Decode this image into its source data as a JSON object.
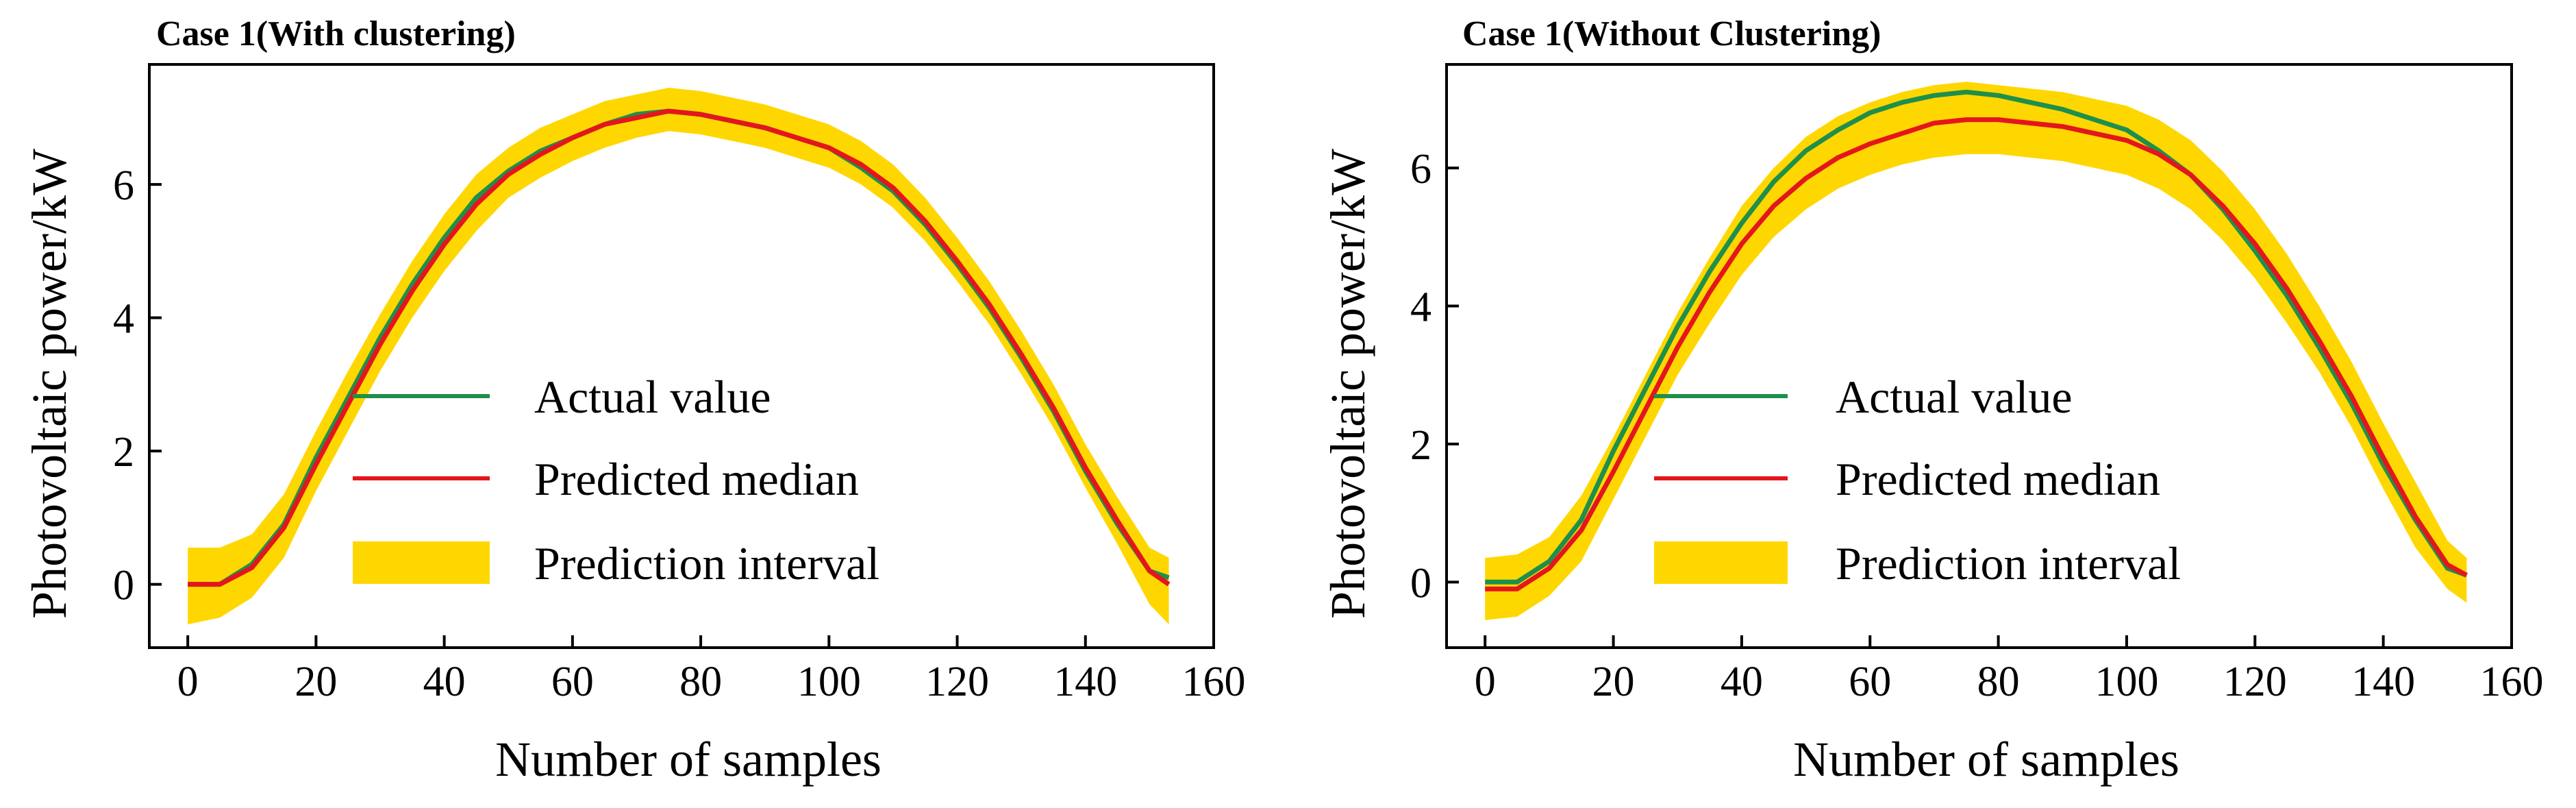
{
  "chart_data": [
    {
      "type": "line",
      "title": "Case 1(With clustering)",
      "xlabel": "Number of samples",
      "ylabel": "Photovoltaic power/kW",
      "xlim": [
        -6,
        160
      ],
      "ylim": [
        -0.95,
        7.8
      ],
      "xticks": [
        0,
        20,
        40,
        60,
        80,
        100,
        120,
        140,
        160
      ],
      "yticks": [
        0,
        2,
        4,
        6
      ],
      "legend_position": "center",
      "series": [
        {
          "name": "Actual value",
          "color": "#1f8f4a",
          "x": [
            0,
            5,
            10,
            15,
            20,
            25,
            30,
            35,
            40,
            45,
            50,
            55,
            60,
            65,
            70,
            75,
            80,
            85,
            90,
            95,
            100,
            105,
            110,
            115,
            120,
            125,
            130,
            135,
            140,
            145,
            150,
            153
          ],
          "y": [
            0.0,
            0.0,
            0.3,
            0.9,
            1.9,
            2.8,
            3.7,
            4.5,
            5.2,
            5.8,
            6.2,
            6.5,
            6.7,
            6.9,
            7.05,
            7.1,
            7.05,
            6.95,
            6.85,
            6.7,
            6.55,
            6.25,
            5.9,
            5.4,
            4.8,
            4.15,
            3.4,
            2.6,
            1.7,
            0.9,
            0.2,
            0.1
          ]
        },
        {
          "name": "Predicted median",
          "color": "#e4161d",
          "x": [
            0,
            5,
            10,
            15,
            20,
            25,
            30,
            35,
            40,
            45,
            50,
            55,
            60,
            65,
            70,
            75,
            80,
            85,
            90,
            95,
            100,
            105,
            110,
            115,
            120,
            125,
            130,
            135,
            140,
            145,
            150,
            153
          ],
          "y": [
            0.0,
            0.0,
            0.25,
            0.85,
            1.8,
            2.7,
            3.6,
            4.4,
            5.1,
            5.7,
            6.15,
            6.45,
            6.7,
            6.9,
            7.0,
            7.1,
            7.05,
            6.95,
            6.85,
            6.7,
            6.55,
            6.3,
            5.95,
            5.45,
            4.85,
            4.2,
            3.45,
            2.65,
            1.75,
            0.95,
            0.2,
            0.0
          ]
        },
        {
          "name": "Prediction interval",
          "color": "#ffd700",
          "x": [
            0,
            5,
            10,
            15,
            20,
            25,
            30,
            35,
            40,
            45,
            50,
            55,
            60,
            65,
            70,
            75,
            80,
            85,
            90,
            95,
            100,
            105,
            110,
            115,
            120,
            125,
            130,
            135,
            140,
            145,
            150,
            153
          ],
          "lower": [
            -0.6,
            -0.5,
            -0.2,
            0.4,
            1.4,
            2.3,
            3.2,
            4.0,
            4.7,
            5.3,
            5.8,
            6.1,
            6.35,
            6.55,
            6.7,
            6.8,
            6.75,
            6.65,
            6.55,
            6.4,
            6.25,
            6.0,
            5.65,
            5.15,
            4.55,
            3.9,
            3.15,
            2.35,
            1.45,
            0.6,
            -0.3,
            -0.6
          ],
          "upper": [
            0.55,
            0.55,
            0.75,
            1.35,
            2.3,
            3.2,
            4.05,
            4.85,
            5.55,
            6.15,
            6.55,
            6.85,
            7.05,
            7.25,
            7.35,
            7.45,
            7.4,
            7.3,
            7.2,
            7.05,
            6.9,
            6.65,
            6.3,
            5.8,
            5.2,
            4.55,
            3.8,
            3.0,
            2.1,
            1.3,
            0.55,
            0.4
          ]
        }
      ]
    },
    {
      "type": "line",
      "title": "Case 1(Without Clustering)",
      "xlabel": "Number of samples",
      "ylabel": "Photovoltaic power/kW",
      "xlim": [
        -6,
        160
      ],
      "ylim": [
        -0.95,
        7.5
      ],
      "xticks": [
        0,
        20,
        40,
        60,
        80,
        100,
        120,
        140,
        160
      ],
      "yticks": [
        0,
        2,
        4,
        6
      ],
      "legend_position": "center",
      "series": [
        {
          "name": "Actual value",
          "color": "#1f8f4a",
          "x": [
            0,
            5,
            10,
            15,
            20,
            25,
            30,
            35,
            40,
            45,
            50,
            55,
            60,
            65,
            70,
            75,
            80,
            85,
            90,
            95,
            100,
            105,
            110,
            115,
            120,
            125,
            130,
            135,
            140,
            145,
            150,
            153
          ],
          "y": [
            0.0,
            0.0,
            0.3,
            0.9,
            1.9,
            2.8,
            3.7,
            4.5,
            5.2,
            5.8,
            6.25,
            6.55,
            6.8,
            6.95,
            7.05,
            7.1,
            7.05,
            6.95,
            6.85,
            6.7,
            6.55,
            6.25,
            5.9,
            5.4,
            4.8,
            4.15,
            3.4,
            2.6,
            1.7,
            0.9,
            0.2,
            0.1
          ]
        },
        {
          "name": "Predicted median",
          "color": "#e4161d",
          "x": [
            0,
            5,
            10,
            15,
            20,
            25,
            30,
            35,
            40,
            45,
            50,
            55,
            60,
            65,
            70,
            75,
            80,
            85,
            90,
            95,
            100,
            105,
            110,
            115,
            120,
            125,
            130,
            135,
            140,
            145,
            150,
            153
          ],
          "y": [
            -0.1,
            -0.1,
            0.2,
            0.75,
            1.6,
            2.5,
            3.4,
            4.2,
            4.9,
            5.45,
            5.85,
            6.15,
            6.35,
            6.5,
            6.65,
            6.7,
            6.7,
            6.65,
            6.6,
            6.5,
            6.4,
            6.2,
            5.9,
            5.45,
            4.9,
            4.25,
            3.5,
            2.7,
            1.8,
            0.95,
            0.25,
            0.1
          ]
        },
        {
          "name": "Prediction interval",
          "color": "#ffd700",
          "x": [
            0,
            5,
            10,
            15,
            20,
            25,
            30,
            35,
            40,
            45,
            50,
            55,
            60,
            65,
            70,
            75,
            80,
            85,
            90,
            95,
            100,
            105,
            110,
            115,
            120,
            125,
            130,
            135,
            140,
            145,
            150,
            153
          ],
          "lower": [
            -0.55,
            -0.5,
            -0.2,
            0.3,
            1.2,
            2.1,
            3.0,
            3.75,
            4.45,
            5.0,
            5.4,
            5.7,
            5.9,
            6.05,
            6.15,
            6.2,
            6.2,
            6.15,
            6.1,
            6.0,
            5.9,
            5.7,
            5.4,
            4.95,
            4.4,
            3.75,
            3.05,
            2.25,
            1.35,
            0.5,
            -0.1,
            -0.3
          ],
          "upper": [
            0.35,
            0.4,
            0.65,
            1.25,
            2.1,
            3.0,
            3.9,
            4.7,
            5.45,
            6.0,
            6.45,
            6.75,
            6.95,
            7.1,
            7.2,
            7.25,
            7.2,
            7.15,
            7.1,
            7.0,
            6.9,
            6.7,
            6.4,
            5.95,
            5.4,
            4.75,
            4.0,
            3.2,
            2.3,
            1.45,
            0.6,
            0.35
          ]
        }
      ]
    }
  ]
}
